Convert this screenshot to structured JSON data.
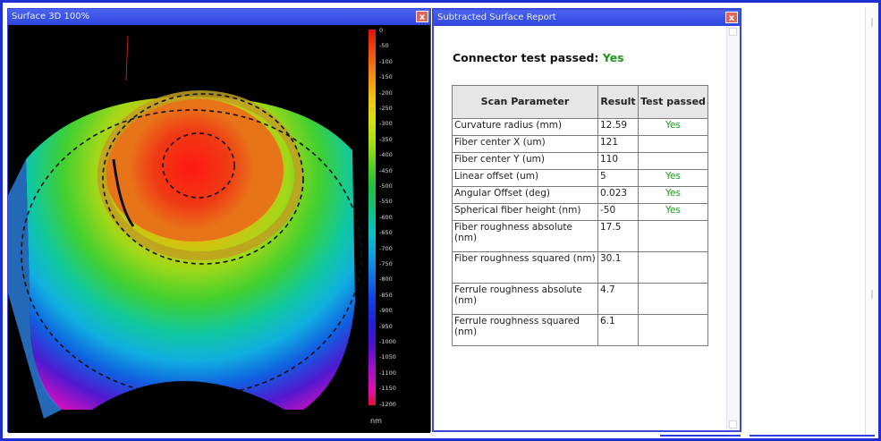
{
  "surface_window": {
    "title": "Surface 3D 100%",
    "close_label": "x",
    "scale_labels": [
      "0",
      "-50",
      "-100",
      "-150",
      "-200",
      "-250",
      "-300",
      "-350",
      "-400",
      "-450",
      "-500",
      "-550",
      "-600",
      "-650",
      "-700",
      "-750",
      "-800",
      "-850",
      "-900",
      "-950",
      "-1000",
      "-1050",
      "-1100",
      "-1150",
      "-1200"
    ],
    "scale_unit": "nm"
  },
  "report_window": {
    "title": "Subtracted Surface Report",
    "close_label": "x",
    "headline_label": "Connector test passed:",
    "headline_value": "Yes",
    "table": {
      "headers": [
        "Scan Parameter",
        "Result",
        "Test passed"
      ],
      "rows": [
        {
          "param": "Curvature radius (mm)",
          "result": "12.59",
          "passed": "Yes"
        },
        {
          "param": "Fiber center X (um)",
          "result": "121",
          "passed": ""
        },
        {
          "param": "Fiber center Y (um)",
          "result": "110",
          "passed": ""
        },
        {
          "param": "Linear offset (um)",
          "result": "5",
          "passed": "Yes"
        },
        {
          "param": "Angular Offset (deg)",
          "result": "0.023",
          "passed": "Yes"
        },
        {
          "param": "Spherical fiber height (nm)",
          "result": "-50",
          "passed": "Yes"
        },
        {
          "param": "Fiber roughness absolute (nm)",
          "result": "17.5",
          "passed": ""
        },
        {
          "param": "Fiber roughness squared (nm)",
          "result": "30.1",
          "passed": ""
        },
        {
          "param": "Ferrule roughness absolute (nm)",
          "result": "4.7",
          "passed": ""
        },
        {
          "param": "Ferrule roughness squared (nm)",
          "result": "6.1",
          "passed": ""
        }
      ]
    }
  },
  "colors": {
    "frame_blue": "#1f2fd6",
    "pass_green": "#1a9a1a",
    "titlebar_blue": "#2f46df"
  }
}
